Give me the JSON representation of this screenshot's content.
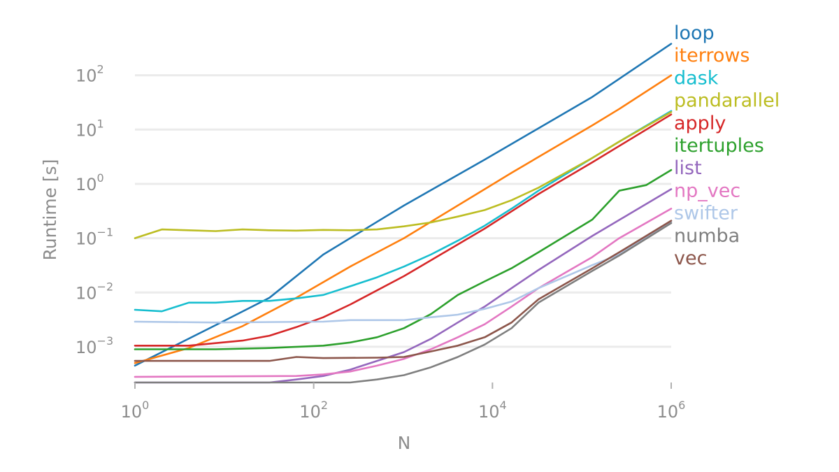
{
  "chart_data": {
    "type": "line",
    "title": "",
    "xlabel": "N",
    "ylabel": "Runtime [s]",
    "xscale": "log",
    "yscale": "log",
    "xlim": [
      1,
      1000000
    ],
    "ylim": [
      0.00022,
      1000
    ],
    "grid": "horizontal",
    "legend": "right-end labels",
    "x_ticks": [
      {
        "base": "10",
        "exp": "0",
        "value": 1
      },
      {
        "base": "10",
        "exp": "2",
        "value": 100
      },
      {
        "base": "10",
        "exp": "4",
        "value": 10000
      },
      {
        "base": "10",
        "exp": "6",
        "value": 1000000
      }
    ],
    "y_ticks": [
      {
        "base": "10",
        "exp": "−3",
        "value": 0.001
      },
      {
        "base": "10",
        "exp": "−2",
        "value": 0.01
      },
      {
        "base": "10",
        "exp": "−1",
        "value": 0.1
      },
      {
        "base": "10",
        "exp": "0",
        "value": 1
      },
      {
        "base": "10",
        "exp": "1",
        "value": 10
      },
      {
        "base": "10",
        "exp": "2",
        "value": 100
      }
    ],
    "series": [
      {
        "name": "loop",
        "color": "#1f77b4",
        "points": [
          [
            1,
            0.00045
          ],
          [
            8,
            0.0025
          ],
          [
            32,
            0.008
          ],
          [
            128,
            0.05
          ],
          [
            512,
            0.2
          ],
          [
            1024,
            0.4
          ],
          [
            8192,
            2.8
          ],
          [
            131072,
            40
          ],
          [
            1000000,
            380
          ]
        ]
      },
      {
        "name": "iterrows",
        "color": "#ff7f0e",
        "points": [
          [
            1,
            0.0005
          ],
          [
            4,
            0.00095
          ],
          [
            16,
            0.0024
          ],
          [
            64,
            0.008
          ],
          [
            256,
            0.03
          ],
          [
            1024,
            0.1
          ],
          [
            8192,
            0.8
          ],
          [
            16384,
            1.6
          ],
          [
            131072,
            12
          ],
          [
            262144,
            24
          ],
          [
            1000000,
            100
          ]
        ]
      },
      {
        "name": "dask",
        "color": "#17becf",
        "points": [
          [
            1,
            0.0048
          ],
          [
            2,
            0.0045
          ],
          [
            4,
            0.0065
          ],
          [
            8,
            0.0065
          ],
          [
            16,
            0.007
          ],
          [
            32,
            0.007
          ],
          [
            64,
            0.0078
          ],
          [
            128,
            0.009
          ],
          [
            256,
            0.013
          ],
          [
            512,
            0.019
          ],
          [
            1024,
            0.03
          ],
          [
            2048,
            0.05
          ],
          [
            4096,
            0.09
          ],
          [
            8192,
            0.17
          ],
          [
            16384,
            0.35
          ],
          [
            32768,
            0.75
          ],
          [
            131072,
            3
          ],
          [
            262144,
            6
          ],
          [
            1000000,
            22
          ]
        ]
      },
      {
        "name": "pandarallel",
        "color": "#bcbd22",
        "points": [
          [
            1,
            0.1
          ],
          [
            2,
            0.145
          ],
          [
            4,
            0.14
          ],
          [
            8,
            0.135
          ],
          [
            16,
            0.145
          ],
          [
            32,
            0.14
          ],
          [
            64,
            0.138
          ],
          [
            128,
            0.142
          ],
          [
            256,
            0.14
          ],
          [
            512,
            0.145
          ],
          [
            1024,
            0.165
          ],
          [
            2048,
            0.195
          ],
          [
            4096,
            0.25
          ],
          [
            8192,
            0.33
          ],
          [
            16384,
            0.5
          ],
          [
            32768,
            0.85
          ],
          [
            131072,
            3
          ],
          [
            262144,
            6
          ],
          [
            1000000,
            21
          ]
        ]
      },
      {
        "name": "apply",
        "color": "#d62728",
        "points": [
          [
            1,
            0.00105
          ],
          [
            4,
            0.00105
          ],
          [
            16,
            0.0013
          ],
          [
            32,
            0.0016
          ],
          [
            64,
            0.0023
          ],
          [
            128,
            0.0035
          ],
          [
            256,
            0.006
          ],
          [
            1024,
            0.02
          ],
          [
            8192,
            0.15
          ],
          [
            32768,
            0.65
          ],
          [
            131072,
            2.5
          ],
          [
            1000000,
            19
          ]
        ]
      },
      {
        "name": "itertuples",
        "color": "#2ca02c",
        "points": [
          [
            1,
            0.0009
          ],
          [
            8,
            0.0009
          ],
          [
            32,
            0.00095
          ],
          [
            128,
            0.00105
          ],
          [
            256,
            0.0012
          ],
          [
            512,
            0.0015
          ],
          [
            1024,
            0.0022
          ],
          [
            2048,
            0.004
          ],
          [
            4096,
            0.009
          ],
          [
            8192,
            0.016
          ],
          [
            16384,
            0.028
          ],
          [
            32768,
            0.055
          ],
          [
            131072,
            0.22
          ],
          [
            262144,
            0.75
          ],
          [
            524288,
            0.95
          ],
          [
            1000000,
            1.8
          ]
        ]
      },
      {
        "name": "list",
        "color": "#9467bd",
        "points": [
          [
            1,
            0.00022
          ],
          [
            32,
            0.00022
          ],
          [
            64,
            0.00025
          ],
          [
            128,
            0.00029
          ],
          [
            256,
            0.00038
          ],
          [
            512,
            0.00055
          ],
          [
            1024,
            0.0008
          ],
          [
            2048,
            0.0014
          ],
          [
            4096,
            0.0028
          ],
          [
            8192,
            0.0055
          ],
          [
            16384,
            0.012
          ],
          [
            32768,
            0.026
          ],
          [
            131072,
            0.11
          ],
          [
            1000000,
            0.8
          ]
        ]
      },
      {
        "name": "np_vec",
        "color": "#e377c2",
        "points": [
          [
            1,
            0.00028
          ],
          [
            64,
            0.00029
          ],
          [
            128,
            0.00031
          ],
          [
            256,
            0.00035
          ],
          [
            512,
            0.00045
          ],
          [
            1024,
            0.0006
          ],
          [
            2048,
            0.0009
          ],
          [
            4096,
            0.0015
          ],
          [
            8192,
            0.0026
          ],
          [
            16384,
            0.0055
          ],
          [
            32768,
            0.012
          ],
          [
            131072,
            0.045
          ],
          [
            262144,
            0.1
          ],
          [
            1000000,
            0.35
          ]
        ]
      },
      {
        "name": "swifter",
        "color": "#aec7e8",
        "points": [
          [
            1,
            0.0029
          ],
          [
            8,
            0.0028
          ],
          [
            128,
            0.0029
          ],
          [
            256,
            0.0031
          ],
          [
            512,
            0.0031
          ],
          [
            1024,
            0.0031
          ],
          [
            2048,
            0.0035
          ],
          [
            4096,
            0.0039
          ],
          [
            8192,
            0.005
          ],
          [
            16384,
            0.0068
          ],
          [
            32768,
            0.012
          ],
          [
            131072,
            0.032
          ],
          [
            262144,
            0.05
          ],
          [
            1000000,
            0.2
          ]
        ]
      },
      {
        "name": "numba",
        "color": "#7f7f7f",
        "points": [
          [
            1,
            0.00022
          ],
          [
            256,
            0.00022
          ],
          [
            512,
            0.00025
          ],
          [
            1024,
            0.0003
          ],
          [
            2048,
            0.00042
          ],
          [
            4096,
            0.00065
          ],
          [
            8192,
            0.0011
          ],
          [
            16384,
            0.0022
          ],
          [
            32768,
            0.0065
          ],
          [
            131072,
            0.025
          ],
          [
            262144,
            0.048
          ],
          [
            1000000,
            0.19
          ]
        ]
      },
      {
        "name": "vec",
        "color": "#8c564b",
        "points": [
          [
            1,
            0.00055
          ],
          [
            32,
            0.00055
          ],
          [
            64,
            0.00065
          ],
          [
            128,
            0.00062
          ],
          [
            512,
            0.00063
          ],
          [
            1024,
            0.00065
          ],
          [
            2048,
            0.00082
          ],
          [
            4096,
            0.00105
          ],
          [
            8192,
            0.0015
          ],
          [
            16384,
            0.0028
          ],
          [
            32768,
            0.0075
          ],
          [
            131072,
            0.028
          ],
          [
            262144,
            0.055
          ],
          [
            1000000,
            0.21
          ]
        ]
      }
    ]
  }
}
